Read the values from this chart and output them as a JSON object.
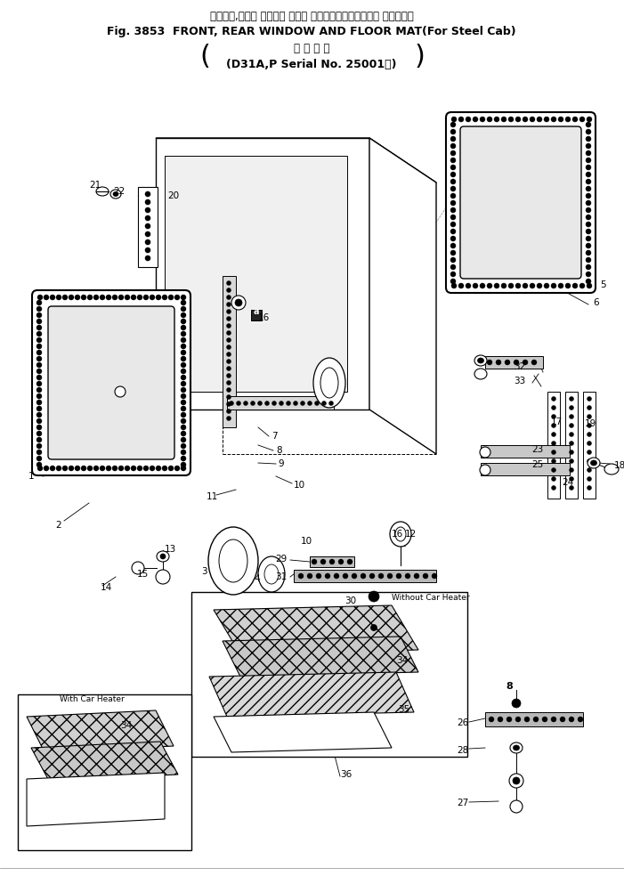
{
  "title_jp": "フロント,リヤー ウインド および フロアマット（スチール キャブ用）",
  "title_en": "Fig. 3853  FRONT, REAR WINDOW AND FLOOR MAT(For Steel Cab)",
  "subtitle_jp": "適 用 号 機",
  "subtitle_model": "(D31A,P Serial No. 25001～)",
  "bg": "#ffffff",
  "lc": "#000000",
  "fw": 7.01,
  "fh": 9.84,
  "dpi": 100
}
